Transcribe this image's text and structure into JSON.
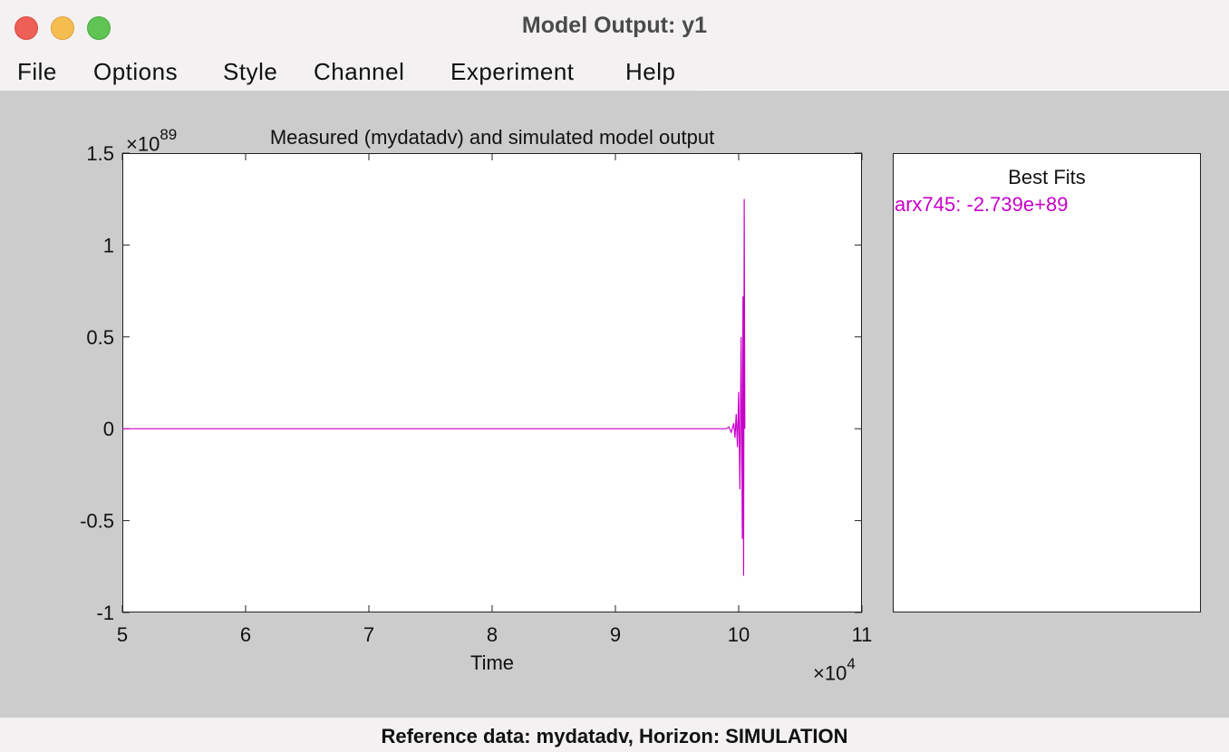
{
  "window": {
    "title": "Model Output: y1"
  },
  "menu": [
    "File",
    "Options",
    "Style",
    "Channel",
    "Experiment",
    "Help"
  ],
  "chart_data": {
    "type": "line",
    "title": "Measured (mydatadv) and simulated model output",
    "xlabel": "Time",
    "ylabel": "",
    "x_exponent_label": "×10",
    "x_exponent": "4",
    "y_exponent_label": "×10",
    "y_exponent": "89",
    "xlim": [
      5,
      11
    ],
    "ylim": [
      -1,
      1.5
    ],
    "x_ticks": [
      "5",
      "6",
      "7",
      "8",
      "9",
      "10",
      "11"
    ],
    "y_ticks": [
      "1.5",
      "1",
      "0.5",
      "0",
      "-0.5",
      "-1"
    ],
    "grid": false,
    "series": [
      {
        "name": "arx745",
        "color": "#c800c8",
        "x": [
          5.0,
          9.9,
          9.92,
          9.94,
          9.96,
          9.97,
          9.98,
          9.99,
          10.0,
          10.01,
          10.02,
          10.03,
          10.035,
          10.04,
          10.045,
          10.05
        ],
        "y": [
          0,
          0,
          0.01,
          -0.02,
          0.03,
          -0.05,
          0.08,
          -0.1,
          0.2,
          -0.33,
          0.5,
          -0.6,
          0.72,
          -0.8,
          1.25,
          0
        ]
      }
    ]
  },
  "best_fits": {
    "title": "Best Fits",
    "entries": [
      {
        "label": "arx745: -2.739e+89",
        "color": "#c800c8"
      }
    ]
  },
  "status": {
    "text": "Reference data:  mydatadv, Horizon: SIMULATION"
  }
}
